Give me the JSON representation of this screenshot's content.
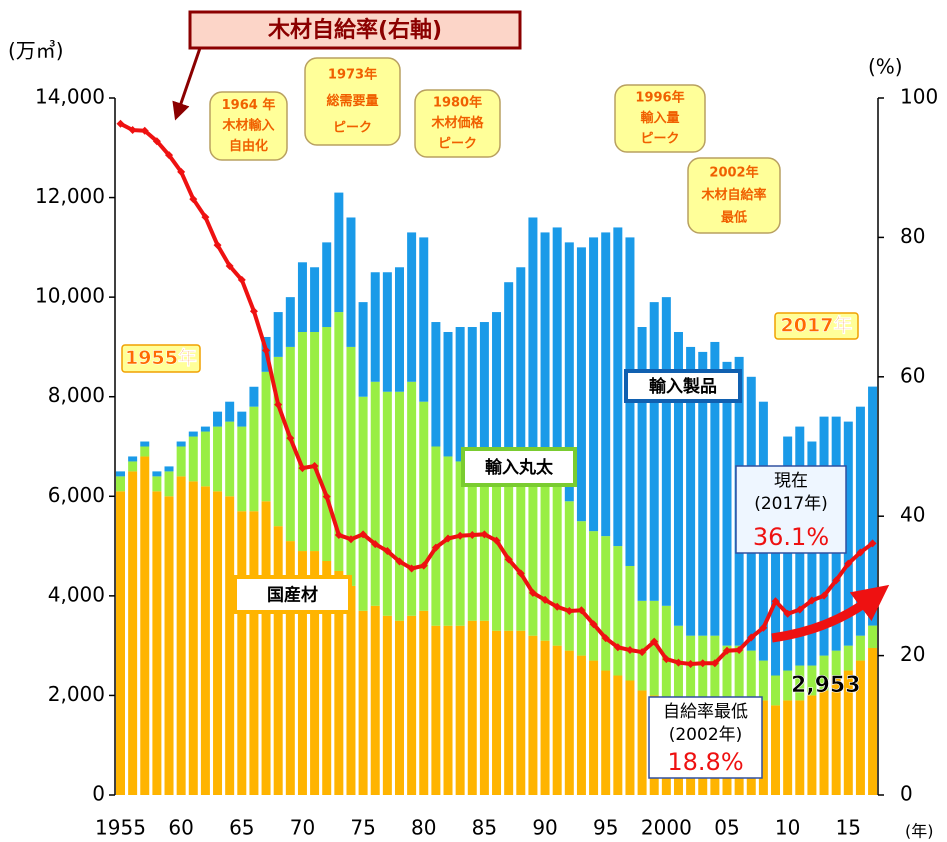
{
  "chart_data": {
    "type": "stacked-bar-line",
    "y_unit": "(万㎥)",
    "y2_unit": "(%)",
    "x_unit": "(年)",
    "categories": [
      "1955",
      null,
      null,
      null,
      null,
      "60",
      null,
      null,
      null,
      null,
      "65",
      null,
      null,
      null,
      null,
      "70",
      null,
      null,
      null,
      null,
      "75",
      null,
      null,
      null,
      null,
      "80",
      null,
      null,
      null,
      null,
      "85",
      null,
      null,
      null,
      null,
      "90",
      null,
      null,
      null,
      null,
      "95",
      null,
      null,
      null,
      null,
      "2000",
      null,
      null,
      null,
      null,
      "05",
      null,
      null,
      null,
      null,
      "10",
      null,
      null,
      null,
      null,
      "15",
      null,
      null
    ],
    "series": [
      {
        "name": "国産材",
        "color": "#ffb400",
        "values": [
          6100,
          6500,
          6800,
          6100,
          6000,
          6400,
          6300,
          6200,
          6100,
          6000,
          5700,
          5700,
          5900,
          5400,
          5100,
          4900,
          4900,
          4700,
          4500,
          4200,
          3700,
          3800,
          3600,
          3500,
          3600,
          3700,
          3400,
          3400,
          3400,
          3500,
          3500,
          3300,
          3300,
          3300,
          3200,
          3100,
          3000,
          2900,
          2800,
          2700,
          2500,
          2400,
          2300,
          2100,
          2000,
          1900,
          1800,
          1700,
          1700,
          1700,
          1800,
          1900,
          1900,
          1900,
          1800,
          1900,
          1900,
          2000,
          2100,
          2400,
          2500,
          2700,
          2953
        ],
        "value_labels": {
          "62": "2,953"
        }
      },
      {
        "name": "輸入丸太",
        "color": "#99ee44",
        "values": [
          300,
          200,
          200,
          300,
          500,
          600,
          900,
          1100,
          1300,
          1500,
          1700,
          2100,
          2600,
          3400,
          3900,
          4400,
          4400,
          4700,
          5200,
          4800,
          4300,
          4500,
          4500,
          4600,
          4700,
          4200,
          3600,
          3400,
          3300,
          3200,
          3200,
          3300,
          3400,
          3300,
          3400,
          3400,
          3200,
          3000,
          2700,
          2600,
          2700,
          2600,
          2300,
          1800,
          1900,
          1900,
          1600,
          1500,
          1500,
          1500,
          1200,
          1100,
          1000,
          800,
          600,
          600,
          700,
          600,
          700,
          500,
          500,
          500,
          450
        ]
      },
      {
        "name": "輸入製品",
        "color": "#1a9ae8",
        "values": [
          100,
          100,
          100,
          100,
          100,
          100,
          100,
          100,
          300,
          400,
          300,
          400,
          700,
          900,
          1000,
          1400,
          1300,
          1700,
          2400,
          2600,
          1900,
          2200,
          2400,
          2500,
          3000,
          3300,
          2500,
          2500,
          2700,
          2700,
          2800,
          3100,
          3600,
          4000,
          5000,
          4800,
          5200,
          5200,
          5500,
          5900,
          6100,
          6400,
          6600,
          5500,
          6000,
          6200,
          5900,
          5800,
          5700,
          5900,
          5700,
          5800,
          5500,
          5200,
          3900,
          4700,
          4800,
          4500,
          4800,
          4700,
          4500,
          4600,
          4800
        ]
      },
      {
        "name": "木材自給率(右軸)",
        "color": "#ee1111",
        "axis": "y2",
        "values": [
          96.3,
          95.4,
          95.3,
          93.8,
          91.8,
          89.4,
          85.5,
          82.9,
          78.9,
          75.9,
          73.9,
          69.4,
          63.8,
          56.0,
          51.2,
          46.9,
          47.2,
          42.8,
          37.3,
          36.7,
          37.4,
          36.0,
          35.0,
          33.5,
          32.5,
          32.9,
          35.5,
          36.8,
          37.2,
          37.3,
          37.4,
          36.5,
          33.8,
          31.8,
          29.0,
          28.0,
          27.0,
          26.4,
          26.5,
          24.5,
          22.5,
          21.2,
          20.8,
          20.5,
          22.0,
          19.5,
          19.0,
          18.8,
          18.9,
          18.9,
          20.7,
          20.8,
          22.6,
          24.0,
          27.8,
          26.0,
          26.6,
          27.9,
          28.6,
          30.8,
          33.2,
          34.8,
          36.1
        ],
        "value_labels": {
          "47": "18.8%",
          "62": "36.1%"
        }
      }
    ],
    "ylim": [
      0,
      14000
    ],
    "yticks": [
      0,
      {
        "value": 2000,
        "label": "2,000"
      },
      {
        "value": 4000,
        "label": "4,000"
      },
      {
        "value": 6000,
        "label": "6,000"
      },
      {
        "value": 8000,
        "label": "8,000"
      },
      {
        "value": 10000,
        "label": "10,000"
      },
      {
        "value": 12000,
        "label": "12,000"
      },
      {
        "value": 14000,
        "label": "14,000"
      }
    ],
    "y2lim": [
      0,
      100
    ],
    "y2ticks": [
      0,
      20,
      40,
      60,
      80,
      100
    ],
    "annotations": [
      [
        "1964 年",
        "木材輸入",
        "自由化"
      ],
      [
        "1973年",
        "総需要量",
        "ピーク"
      ],
      [
        "1980年",
        "木材価格",
        "ピーク"
      ],
      [
        "1996年",
        "輸入量",
        "ピーク"
      ],
      [
        "2002年",
        "木材自給率",
        "最低"
      ],
      [
        "1955年"
      ],
      [
        "2017年"
      ]
    ],
    "callouts": [
      [
        "自給率最低",
        "(2002年)"
      ],
      [
        "現在",
        "(2017年)"
      ]
    ]
  }
}
